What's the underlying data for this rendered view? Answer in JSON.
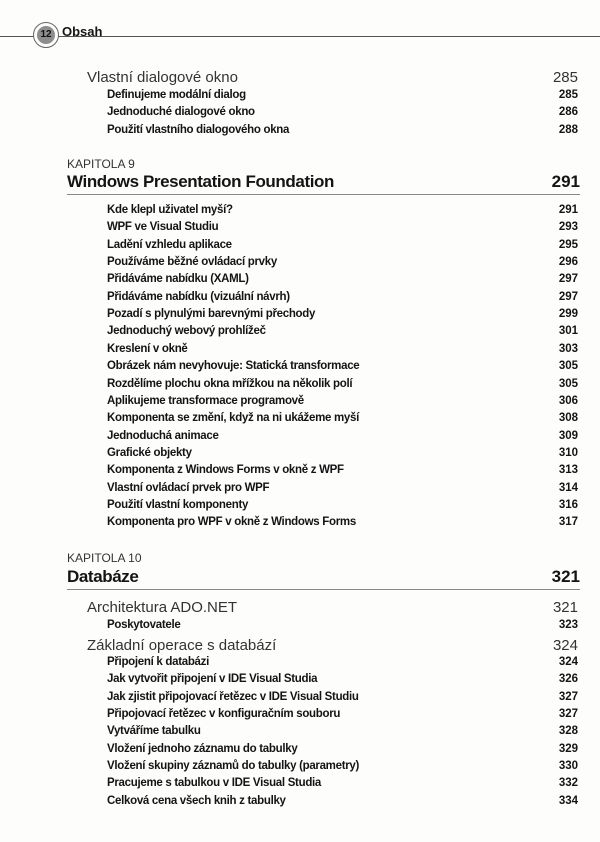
{
  "header": {
    "page_number": "12",
    "title": "Obsah"
  },
  "intro": {
    "section": {
      "title": "Vlastní dialogové okno",
      "page": "285"
    },
    "items": [
      {
        "title": "Definujeme modální dialog",
        "page": "285"
      },
      {
        "title": "Jednoduché dialogové okno",
        "page": "286"
      },
      {
        "title": "Použití vlastního dialogového okna",
        "page": "288"
      }
    ]
  },
  "chapter9": {
    "label": "KAPITOLA 9",
    "title": "Windows Presentation Foundation",
    "page": "291",
    "items": [
      {
        "title": "Kde klepl uživatel myší?",
        "page": "291"
      },
      {
        "title": "WPF ve Visual Studiu",
        "page": "293"
      },
      {
        "title": "Ladění vzhledu aplikace",
        "page": "295"
      },
      {
        "title": "Používáme běžné ovládací prvky",
        "page": "296"
      },
      {
        "title": "Přidáváme nabídku (XAML)",
        "page": "297"
      },
      {
        "title": "Přidáváme nabídku (vizuální návrh)",
        "page": "297"
      },
      {
        "title": "Pozadí s plynulými barevnými přechody",
        "page": "299"
      },
      {
        "title": "Jednoduchý webový prohlížeč",
        "page": "301"
      },
      {
        "title": "Kreslení v okně",
        "page": "303"
      },
      {
        "title": "Obrázek nám nevyhovuje: Statická transformace",
        "page": "305"
      },
      {
        "title": "Rozdělíme plochu okna mřížkou na několik polí",
        "page": "305"
      },
      {
        "title": "Aplikujeme transformace programově",
        "page": "306"
      },
      {
        "title": "Komponenta se změní, když na ni ukážeme myší",
        "page": "308"
      },
      {
        "title": "Jednoduchá animace",
        "page": "309"
      },
      {
        "title": "Grafické objekty",
        "page": "310"
      },
      {
        "title": "Komponenta z Windows Forms v okně z WPF",
        "page": "313"
      },
      {
        "title": "Vlastní ovládací prvek pro WPF",
        "page": "314"
      },
      {
        "title": "Použití vlastní komponenty",
        "page": "316"
      },
      {
        "title": "Komponenta pro WPF v okně z Windows Forms",
        "page": "317"
      }
    ]
  },
  "chapter10": {
    "label": "KAPITOLA 10",
    "title": "Databáze",
    "page": "321",
    "section1": {
      "title": "Architektura ADO.NET",
      "page": "321"
    },
    "section1_items": [
      {
        "title": "Poskytovatele",
        "page": "323"
      }
    ],
    "section2": {
      "title": "Základní operace s databází",
      "page": "324"
    },
    "section2_items": [
      {
        "title": "Připojení k databázi",
        "page": "324"
      },
      {
        "title": "Jak vytvořit připojení v IDE Visual Studia",
        "page": "326"
      },
      {
        "title": "Jak zjistit připojovací řetězec v IDE Visual Studiu",
        "page": "327"
      },
      {
        "title": "Připojovací řetězec v konfiguračním souboru",
        "page": "327"
      },
      {
        "title": "Vytváříme tabulku",
        "page": "328"
      },
      {
        "title": "Vložení jednoho záznamu do tabulky",
        "page": "329"
      },
      {
        "title": "Vložení skupiny záznamů do tabulky (parametry)",
        "page": "330"
      },
      {
        "title": "Pracujeme s tabulkou v IDE Visual Studia",
        "page": "332"
      },
      {
        "title": "Celková cena všech knih z tabulky",
        "page": "334"
      }
    ]
  }
}
